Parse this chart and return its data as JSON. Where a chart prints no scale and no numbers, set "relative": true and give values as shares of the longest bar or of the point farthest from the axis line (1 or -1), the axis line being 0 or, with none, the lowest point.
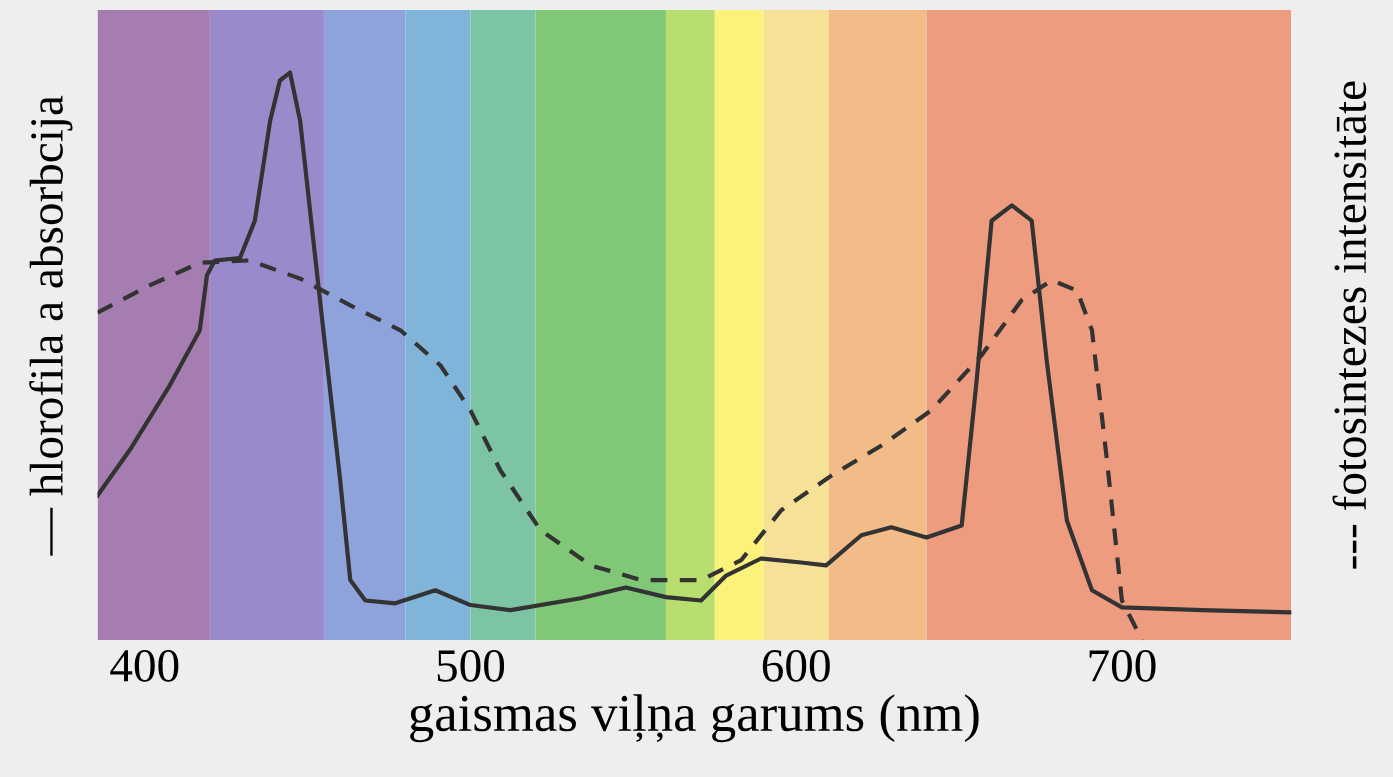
{
  "chart_data": {
    "type": "line",
    "relative": true,
    "xlabel": "gaismas viļņa garums (nm)",
    "ylabel": "— hlorofila a absorbcija",
    "y2label": "--- fotosintezes intensitāte",
    "xlim": [
      385.5,
      752
    ],
    "xticks": [
      400,
      500,
      600,
      700
    ],
    "grid": false,
    "legend": false,
    "marker": "none",
    "tick_labels": "x",
    "bands": [
      {
        "axis": "x",
        "from": 385.5,
        "to": 420,
        "color": "#a57db0"
      },
      {
        "axis": "x",
        "from": 420,
        "to": 455,
        "color": "#9a8acc"
      },
      {
        "axis": "x",
        "from": 455,
        "to": 480,
        "color": "#8ea2dc"
      },
      {
        "axis": "x",
        "from": 480,
        "to": 500,
        "color": "#80b4d8"
      },
      {
        "axis": "x",
        "from": 500,
        "to": 520,
        "color": "#7cc4a4"
      },
      {
        "axis": "x",
        "from": 520,
        "to": 560,
        "color": "#80c878"
      },
      {
        "axis": "x",
        "from": 560,
        "to": 575,
        "color": "#b8de70"
      },
      {
        "axis": "x",
        "from": 575,
        "to": 590,
        "color": "#fbf27c"
      },
      {
        "axis": "x",
        "from": 590,
        "to": 610,
        "color": "#f6e196"
      },
      {
        "axis": "x",
        "from": 610,
        "to": 640,
        "color": "#f2bc88"
      },
      {
        "axis": "x",
        "from": 640,
        "to": 752,
        "color": "#ee9c80"
      }
    ],
    "series": [
      {
        "color": "#333333",
        "line_style": "solid",
        "x": [
          385.5,
          395.4,
          407.7,
          416.9,
          419.1,
          421.5,
          429.2,
          433.8,
          438.5,
          441.5,
          444.6,
          447.7,
          453.8,
          460,
          463.1,
          467.7,
          476.9,
          489.2,
          500,
          512.3,
          533.8,
          547.7,
          560,
          570.8,
          578.5,
          589.2,
          601.5,
          609.2,
          620,
          629.2,
          640,
          650.8,
          655.4,
          660,
          666.2,
          672.3,
          676.9,
          683.1,
          690.8,
          700,
          724.6,
          752
        ],
        "values": [
          0.255,
          0.335,
          0.449,
          0.546,
          0.643,
          0.669,
          0.673,
          0.739,
          0.915,
          0.986,
          1,
          0.915,
          0.599,
          0.282,
          0.106,
          0.07,
          0.065,
          0.088,
          0.062,
          0.053,
          0.074,
          0.093,
          0.076,
          0.07,
          0.114,
          0.144,
          0.137,
          0.132,
          0.185,
          0.199,
          0.181,
          0.202,
          0.458,
          0.739,
          0.766,
          0.739,
          0.493,
          0.211,
          0.088,
          0.058,
          0.053,
          0.049
        ]
      },
      {
        "color": "#333333",
        "line_style": "dashed",
        "x": [
          385.5,
          401.5,
          416.9,
          432.3,
          447.7,
          463.1,
          478.5,
          490.8,
          500,
          509.2,
          521.5,
          536.9,
          552.3,
          570.8,
          583.1,
          595.4,
          610.8,
          626.2,
          641.5,
          656.9,
          669.2,
          678.5,
          686.2,
          690.8,
          695.4,
          700,
          706.2
        ],
        "values": [
          0.577,
          0.625,
          0.665,
          0.669,
          0.637,
          0.59,
          0.546,
          0.484,
          0.405,
          0.299,
          0.194,
          0.132,
          0.106,
          0.106,
          0.141,
          0.229,
          0.29,
          0.343,
          0.405,
          0.502,
          0.599,
          0.634,
          0.616,
          0.546,
          0.317,
          0.07,
          0.0
        ]
      }
    ]
  }
}
